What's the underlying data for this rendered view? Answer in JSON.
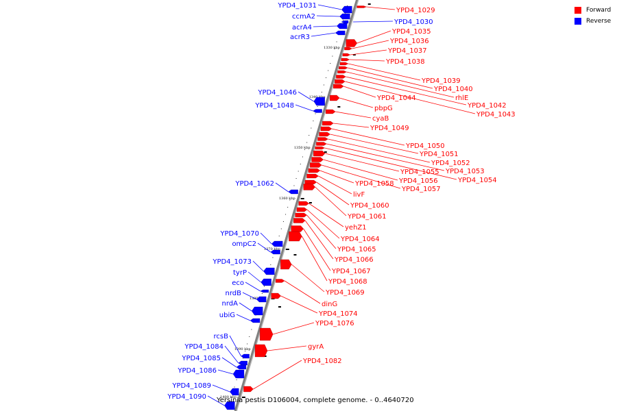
{
  "caption": "Yersinia pestis D106004, complete genome. - 0..4640720",
  "legend": [
    {
      "label": "Forward",
      "color": "#ff0000"
    },
    {
      "label": "Reverse",
      "color": "#0000ff"
    }
  ],
  "colors": {
    "forward": "#ff0000",
    "reverse": "#0000ff",
    "backbone": "#808080"
  },
  "ticks": [
    "1330 kbp",
    "1340 kbp",
    "1350 kbp",
    "1360 kbp",
    "1370 kbp",
    "1380 kbp",
    "1390 kbp",
    "1400 kbp"
  ],
  "forward_genes": [
    "YPD4_1029",
    "YPD4_1035",
    "YPD4_1036",
    "YPD4_1037",
    "YPD4_1038",
    "YPD4_1039",
    "YPD4_1040",
    "rhlE",
    "YPD4_1042",
    "YPD4_1043",
    "YPD4_1044",
    "pbpG",
    "cyaB",
    "YPD4_1049",
    "YPD4_1050",
    "YPD4_1051",
    "YPD4_1052",
    "YPD4_1053",
    "YPD4_1054",
    "YPD4_1055",
    "YPD4_1056",
    "YPD4_1057",
    "YPD4_1058",
    "livF",
    "YPD4_1060",
    "YPD4_1061",
    "yehZ1",
    "YPD4_1064",
    "YPD4_1065",
    "YPD4_1066",
    "YPD4_1067",
    "YPD4_1068",
    "YPD4_1069",
    "dinG",
    "YPD4_1074",
    "YPD4_1076",
    "gyrA",
    "YPD4_1082"
  ],
  "reverse_genes": [
    "YPD4_1031",
    "YPD4_1030",
    "ccmA2",
    "acrA4",
    "acrR3",
    "YPD4_1046",
    "YPD4_1048",
    "YPD4_1062",
    "YPD4_1070",
    "ompC2",
    "YPD4_1073",
    "tyrP",
    "eco",
    "nrdB",
    "nrdA",
    "ubiG",
    "rcsB",
    "YPD4_1084",
    "YPD4_1085",
    "YPD4_1086",
    "YPD4_1089",
    "YPD4_1090"
  ]
}
